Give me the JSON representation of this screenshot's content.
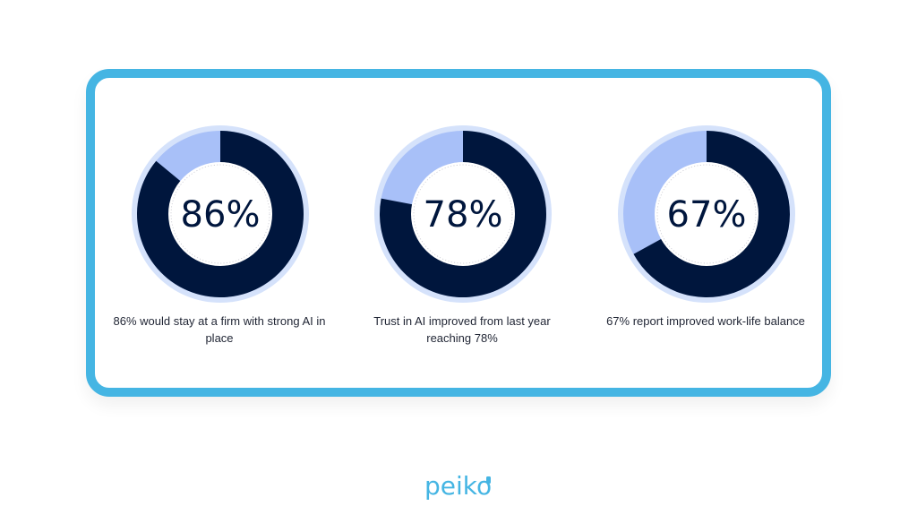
{
  "colors": {
    "card_border": "#45B5E3",
    "outer_ring": "#D5E2FB",
    "filled_arc": "#00163D",
    "remaining_arc": "#A8C0F8",
    "center_fill": "#FFFFFF",
    "label_text": "#1f2433",
    "logo": "#45B5E3"
  },
  "stats": [
    {
      "value": 86,
      "label": "86%",
      "caption_line1": "86% would stay at a firm with strong AI in",
      "caption_line2": "place"
    },
    {
      "value": 78,
      "label": "78%",
      "caption_line1": "Trust in AI improved from last year",
      "caption_line2": "reaching 78%"
    },
    {
      "value": 67,
      "label": "67%",
      "caption_line1": "67% report improved work-life balance",
      "caption_line2": ""
    }
  ],
  "logo": {
    "text": "peiko"
  },
  "chart_data": {
    "type": "pie",
    "subtype": "donut",
    "charts": [
      {
        "title": "86%",
        "slices": [
          {
            "name": "filled",
            "value": 86
          },
          {
            "name": "remaining",
            "value": 14
          }
        ],
        "caption": "86% would stay at a firm with strong AI in place"
      },
      {
        "title": "78%",
        "slices": [
          {
            "name": "filled",
            "value": 78
          },
          {
            "name": "remaining",
            "value": 22
          }
        ],
        "caption": "Trust in AI improved from last year reaching 78%"
      },
      {
        "title": "67%",
        "slices": [
          {
            "name": "filled",
            "value": 67
          },
          {
            "name": "remaining",
            "value": 33
          }
        ],
        "caption": "67% report improved work-life balance"
      }
    ],
    "legend": "none",
    "grid": false
  }
}
